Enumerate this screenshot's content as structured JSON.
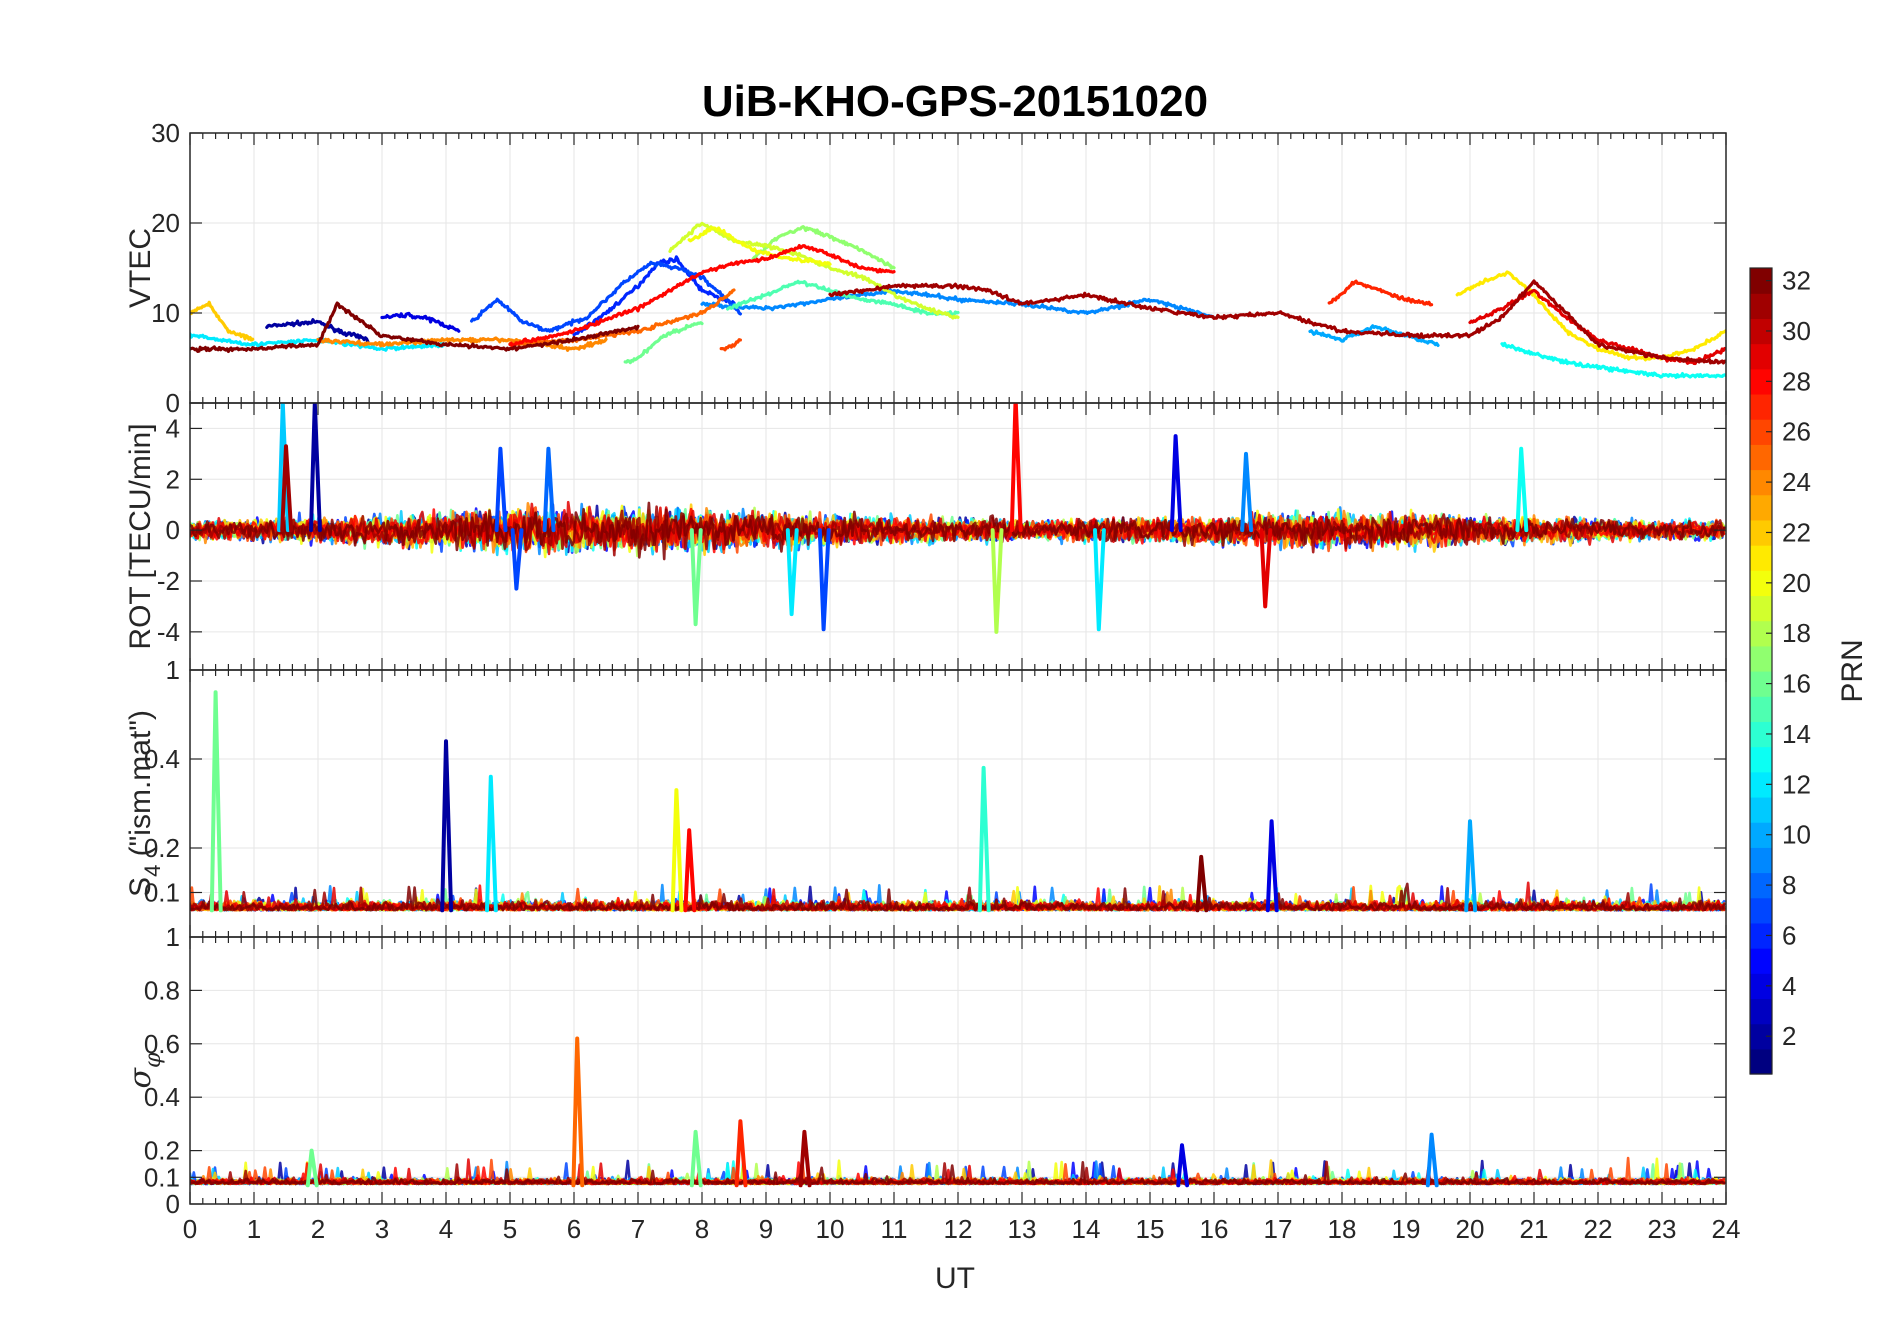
{
  "chart_data": {
    "title": "UiB-KHO-GPS-20151020",
    "type": "line",
    "x_range": [
      0,
      24
    ],
    "x_ticks": [
      "0",
      "1",
      "2",
      "3",
      "4",
      "5",
      "6",
      "7",
      "8",
      "9",
      "10",
      "11",
      "12",
      "13",
      "14",
      "15",
      "16",
      "17",
      "18",
      "19",
      "20",
      "21",
      "22",
      "23",
      "24"
    ],
    "xlabel": "UT",
    "grid": true,
    "panels": [
      {
        "ylabel": "VTEC",
        "ylim": [
          0,
          30
        ],
        "yticks": [
          0,
          10,
          20,
          30
        ],
        "description": "Vertical TEC per satellite, approx 5-8 TECU at night rising to 15-20 TECU near 8-10 UT",
        "series": [
          {
            "prn": 2,
            "points": [
              [
                1.2,
                8.5
              ],
              [
                1.6,
                8.8
              ],
              [
                2.0,
                9.0
              ],
              [
                2.4,
                7.8
              ],
              [
                2.8,
                7.0
              ]
            ]
          },
          {
            "prn": 4,
            "points": [
              [
                3.0,
                9.5
              ],
              [
                3.4,
                9.8
              ],
              [
                3.8,
                9.2
              ],
              [
                4.2,
                8.0
              ]
            ]
          },
          {
            "prn": 6,
            "points": [
              [
                6.0,
                7.5
              ],
              [
                6.5,
                10.0
              ],
              [
                7.0,
                13.0
              ],
              [
                7.3,
                15.5
              ],
              [
                7.6,
                16.0
              ],
              [
                8.0,
                12.5
              ],
              [
                8.5,
                11.0
              ]
            ]
          },
          {
            "prn": 7,
            "points": [
              [
                4.4,
                9.0
              ],
              [
                4.8,
                11.5
              ],
              [
                5.2,
                9.0
              ],
              [
                5.6,
                8.0
              ],
              [
                6.2,
                9.5
              ],
              [
                6.8,
                13.5
              ],
              [
                7.2,
                15.5
              ],
              [
                7.6,
                15.0
              ],
              [
                8.0,
                14.0
              ],
              [
                8.6,
                10.0
              ]
            ]
          },
          {
            "prn": 9,
            "points": [
              [
                8.0,
                11.0
              ],
              [
                9.0,
                10.5
              ],
              [
                10.0,
                11.5
              ],
              [
                11.0,
                12.5
              ],
              [
                12.0,
                11.5
              ],
              [
                13.0,
                11.0
              ],
              [
                14.0,
                10.0
              ],
              [
                15.0,
                11.5
              ],
              [
                16.0,
                9.5
              ]
            ]
          },
          {
            "prn": 10,
            "points": [
              [
                17.5,
                8.0
              ],
              [
                18.0,
                7.0
              ],
              [
                18.5,
                8.5
              ],
              [
                19.0,
                7.5
              ],
              [
                19.5,
                6.5
              ]
            ]
          },
          {
            "prn": 12,
            "points": [
              [
                0.0,
                7.5
              ],
              [
                1.0,
                6.5
              ],
              [
                2.0,
                7.0
              ],
              [
                3.0,
                6.0
              ],
              [
                4.0,
                6.5
              ]
            ]
          },
          {
            "prn": 13,
            "points": [
              [
                20.5,
                6.5
              ],
              [
                21.0,
                5.5
              ],
              [
                21.5,
                4.5
              ],
              [
                22.0,
                4.0
              ],
              [
                22.5,
                3.5
              ],
              [
                23.0,
                3.0
              ],
              [
                23.5,
                3.0
              ],
              [
                24.0,
                3.0
              ]
            ]
          },
          {
            "prn": 16,
            "points": [
              [
                6.8,
                4.5
              ],
              [
                7.0,
                5.0
              ],
              [
                7.4,
                7.5
              ],
              [
                7.8,
                8.5
              ],
              [
                8.0,
                9.0
              ]
            ]
          },
          {
            "prn": 15,
            "points": [
              [
                8.4,
                10.5
              ],
              [
                9.0,
                12.0
              ],
              [
                9.5,
                13.5
              ],
              [
                10.0,
                12.5
              ],
              [
                10.5,
                11.5
              ],
              [
                11.0,
                11.0
              ],
              [
                11.5,
                10.0
              ],
              [
                12.0,
                10.0
              ]
            ]
          },
          {
            "prn": 17,
            "points": [
              [
                8.8,
                16.0
              ],
              [
                9.2,
                18.5
              ],
              [
                9.6,
                19.5
              ],
              [
                10.0,
                18.5
              ],
              [
                10.5,
                17.0
              ],
              [
                11.0,
                15.0
              ]
            ]
          },
          {
            "prn": 19,
            "points": [
              [
                7.5,
                17.0
              ],
              [
                8.0,
                20.0
              ],
              [
                8.5,
                18.0
              ],
              [
                9.0,
                17.5
              ],
              [
                9.5,
                16.5
              ],
              [
                10.0,
                15.0
              ],
              [
                10.5,
                14.0
              ],
              [
                11.0,
                12.0
              ],
              [
                11.5,
                10.5
              ],
              [
                12.0,
                9.5
              ]
            ]
          },
          {
            "prn": 20,
            "points": [
              [
                7.8,
                18.0
              ],
              [
                8.2,
                19.5
              ],
              [
                8.8,
                17.0
              ],
              [
                9.4,
                16.0
              ],
              [
                10.0,
                15.5
              ]
            ]
          },
          {
            "prn": 21,
            "points": [
              [
                19.8,
                12.0
              ],
              [
                20.2,
                13.5
              ],
              [
                20.6,
                14.5
              ],
              [
                21.0,
                12.0
              ],
              [
                21.5,
                8.0
              ],
              [
                22.0,
                6.0
              ],
              [
                22.5,
                5.0
              ],
              [
                23.0,
                5.0
              ],
              [
                23.5,
                6.0
              ],
              [
                24.0,
                8.0
              ]
            ]
          },
          {
            "prn": 22,
            "points": [
              [
                0.0,
                10.0
              ],
              [
                0.3,
                11.0
              ],
              [
                0.6,
                8.0
              ],
              [
                1.0,
                7.0
              ]
            ]
          },
          {
            "prn": 24,
            "points": [
              [
                2.0,
                7.0
              ],
              [
                3.0,
                6.5
              ],
              [
                4.0,
                7.0
              ],
              [
                5.0,
                7.0
              ],
              [
                6.0,
                6.0
              ],
              [
                6.5,
                7.0
              ]
            ]
          },
          {
            "prn": 25,
            "points": [
              [
                5.0,
                6.5
              ],
              [
                6.0,
                7.0
              ],
              [
                7.0,
                8.0
              ],
              [
                8.0,
                10.0
              ],
              [
                8.5,
                12.5
              ]
            ]
          },
          {
            "prn": 26,
            "points": [
              [
                8.3,
                6.0
              ],
              [
                8.5,
                6.5
              ],
              [
                8.6,
                7.0
              ]
            ]
          },
          {
            "prn": 27,
            "points": [
              [
                17.8,
                11.0
              ],
              [
                18.2,
                13.5
              ],
              [
                18.6,
                12.5
              ],
              [
                19.0,
                11.5
              ],
              [
                19.4,
                11.0
              ]
            ]
          },
          {
            "prn": 28,
            "points": [
              [
                5.0,
                6.5
              ],
              [
                6.0,
                8.0
              ],
              [
                7.0,
                10.5
              ],
              [
                7.5,
                12.5
              ],
              [
                8.0,
                14.5
              ],
              [
                8.5,
                15.5
              ],
              [
                9.0,
                16.0
              ],
              [
                9.6,
                17.5
              ],
              [
                10.0,
                16.5
              ],
              [
                10.5,
                15.0
              ],
              [
                11.0,
                14.5
              ]
            ]
          },
          {
            "prn": 29,
            "points": [
              [
                20.0,
                9.0
              ],
              [
                20.5,
                10.5
              ],
              [
                21.0,
                12.5
              ],
              [
                21.5,
                9.5
              ],
              [
                22.0,
                7.0
              ],
              [
                22.5,
                6.0
              ],
              [
                23.0,
                5.0
              ],
              [
                23.5,
                4.5
              ],
              [
                24.0,
                6.0
              ]
            ]
          },
          {
            "prn": 31,
            "points": [
              [
                10.0,
                12.0
              ],
              [
                11.0,
                13.0
              ],
              [
                12.0,
                13.0
              ],
              [
                12.5,
                12.5
              ],
              [
                13.0,
                11.0
              ],
              [
                14.0,
                12.0
              ],
              [
                15.0,
                10.5
              ],
              [
                16.0,
                9.5
              ],
              [
                17.0,
                10.0
              ],
              [
                18.0,
                8.0
              ],
              [
                19.0,
                7.5
              ],
              [
                20.0,
                7.5
              ],
              [
                20.5,
                9.5
              ],
              [
                21.0,
                13.5
              ],
              [
                21.5,
                10.0
              ],
              [
                22.0,
                6.5
              ],
              [
                23.0,
                5.0
              ],
              [
                24.0,
                4.5
              ]
            ]
          },
          {
            "prn": 32,
            "points": [
              [
                0.0,
                6.0
              ],
              [
                1.0,
                6.0
              ],
              [
                2.0,
                6.5
              ],
              [
                2.3,
                11.0
              ],
              [
                2.7,
                9.0
              ],
              [
                3.0,
                7.5
              ],
              [
                4.0,
                6.5
              ],
              [
                5.0,
                6.0
              ],
              [
                6.0,
                7.0
              ],
              [
                7.0,
                8.5
              ]
            ]
          }
        ]
      },
      {
        "ylabel": "ROT [TECU/min]",
        "ylim": [
          -5.5,
          5
        ],
        "yticks": [
          -4,
          -2,
          0,
          2,
          4
        ],
        "description": "Rate of TEC, noisy around 0 with spikes up to about +5 and down to about -4",
        "spikes": [
          {
            "x": 1.45,
            "y": 5.0,
            "prn": 11
          },
          {
            "x": 1.5,
            "y": 3.3,
            "prn": 31
          },
          {
            "x": 1.95,
            "y": 5.0,
            "prn": 2
          },
          {
            "x": 4.85,
            "y": 3.2,
            "prn": 7
          },
          {
            "x": 5.1,
            "y": -2.3,
            "prn": 7
          },
          {
            "x": 5.6,
            "y": 3.2,
            "prn": 8
          },
          {
            "x": 7.9,
            "y": -3.7,
            "prn": 16
          },
          {
            "x": 9.4,
            "y": -3.3,
            "prn": 12
          },
          {
            "x": 9.9,
            "y": -3.9,
            "prn": 7
          },
          {
            "x": 12.6,
            "y": -4.0,
            "prn": 18
          },
          {
            "x": 12.9,
            "y": 5.2,
            "prn": 28
          },
          {
            "x": 14.2,
            "y": -3.9,
            "prn": 12
          },
          {
            "x": 15.4,
            "y": 3.7,
            "prn": 4
          },
          {
            "x": 16.5,
            "y": 3.0,
            "prn": 9
          },
          {
            "x": 16.8,
            "y": -3.0,
            "prn": 29
          },
          {
            "x": 20.8,
            "y": 3.2,
            "prn": 13
          }
        ]
      },
      {
        "ylabel": "S4 (\"ism.mat\")",
        "ylabel_main": "S",
        "ylabel_sub": "4",
        "ylabel_rest": " (\"ism.mat\")",
        "ylim": [
          0,
          0.6
        ],
        "yticks": [
          0.1,
          0.2,
          0.4
        ],
        "top_tick": "1",
        "description": "Amplitude scintillation index, background ~0.05-0.08 with enhancements",
        "spikes": [
          {
            "x": 0.4,
            "y": 0.55,
            "prn": 16
          },
          {
            "x": 4.0,
            "y": 0.44,
            "prn": 2
          },
          {
            "x": 4.7,
            "y": 0.36,
            "prn": 12
          },
          {
            "x": 7.6,
            "y": 0.33,
            "prn": 20
          },
          {
            "x": 7.8,
            "y": 0.24,
            "prn": 28
          },
          {
            "x": 12.4,
            "y": 0.38,
            "prn": 14
          },
          {
            "x": 15.8,
            "y": 0.18,
            "prn": 32
          },
          {
            "x": 16.9,
            "y": 0.26,
            "prn": 4
          },
          {
            "x": 20.0,
            "y": 0.26,
            "prn": 10
          }
        ]
      },
      {
        "ylabel_symbol": "σ",
        "ylabel_sub": "φ",
        "ylim": [
          0,
          1
        ],
        "yticks": [
          0,
          0.1,
          0.2,
          0.4,
          0.6,
          0.8
        ],
        "top_tick": "1",
        "description": "Phase scintillation index, background ~0.05-0.1 with peak ~0.62 near 6 UT",
        "spikes": [
          {
            "x": 6.05,
            "y": 0.62,
            "prn": 25
          },
          {
            "x": 8.6,
            "y": 0.31,
            "prn": 27
          },
          {
            "x": 9.6,
            "y": 0.27,
            "prn": 31
          },
          {
            "x": 19.4,
            "y": 0.26,
            "prn": 9
          },
          {
            "x": 7.9,
            "y": 0.27,
            "prn": 16
          },
          {
            "x": 15.5,
            "y": 0.22,
            "prn": 4
          },
          {
            "x": 1.9,
            "y": 0.2,
            "prn": 16
          }
        ]
      }
    ],
    "colorbar": {
      "label": "PRN",
      "min": 1,
      "max": 32,
      "ticks": [
        "2",
        "4",
        "6",
        "8",
        "10",
        "12",
        "14",
        "16",
        "18",
        "20",
        "22",
        "24",
        "26",
        "28",
        "30",
        "32"
      ],
      "colormap": "jet"
    }
  }
}
